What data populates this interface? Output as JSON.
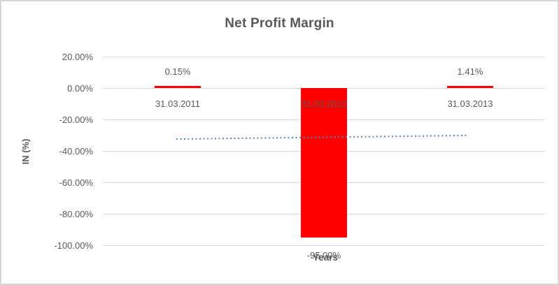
{
  "chart_data": {
    "type": "bar",
    "title": "Net Profit Margin",
    "xlabel": "Years",
    "ylabel": "IN (%)",
    "categories": [
      "31.03.2011",
      "31.03.2012",
      "31.03.2013"
    ],
    "values": [
      0.15,
      -95.0,
      1.41
    ],
    "data_labels": [
      "0.15%",
      "-95.00%",
      "1.41%"
    ],
    "y_ticks": [
      20,
      0,
      -20,
      -40,
      -60,
      -80,
      -100
    ],
    "y_tick_labels": [
      "20.00%",
      "0.00%",
      "-20.00%",
      "-40.00%",
      "-60.00%",
      "-80.00%",
      "-100.00%"
    ],
    "ylim": [
      -100,
      20
    ],
    "grid": true,
    "legend": "none",
    "trendline": {
      "type": "linear",
      "style": "dotted",
      "start_value": -32.5,
      "end_value": -30.2
    }
  },
  "colors": {
    "bar": "#FF0000",
    "trendline": "#4F86C6",
    "gridline": "#D9D9D9",
    "text": "#595959",
    "chart_border": "#D6D6D6",
    "background": "#FFFFFF"
  }
}
